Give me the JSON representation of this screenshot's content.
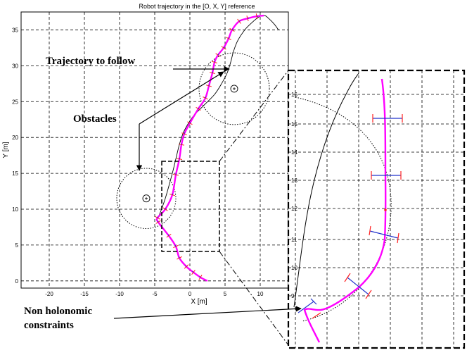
{
  "chart_data": {
    "type": "line",
    "title": "Robot trajectory in the [O, X, Y] reference",
    "xlabel": "X [m]",
    "ylabel": "Y [m]",
    "xlim": [
      -24,
      14
    ],
    "ylim": [
      -1,
      37.5
    ],
    "xticks": [
      -20,
      -15,
      -10,
      -5,
      0,
      5,
      10
    ],
    "yticks": [
      0,
      5,
      10,
      15,
      20,
      25,
      30,
      35
    ],
    "grid": true,
    "series": [
      {
        "role": "reference",
        "color": "#000000",
        "x": [
          -4.5,
          -3.5,
          -2.5,
          -2.0,
          -1.5,
          -1.0,
          -0.5,
          0.5,
          2.0,
          3.5,
          4.5,
          5.3,
          5.8,
          6.2,
          6.8,
          7.8,
          8.8,
          9.8,
          10.6,
          11.2,
          12.0,
          12.6
        ],
        "y": [
          8.8,
          11.5,
          15.0,
          17.0,
          19.0,
          20.5,
          21.5,
          23.0,
          24.5,
          26.0,
          27.5,
          29.0,
          30.5,
          32.0,
          33.5,
          35.0,
          36.0,
          36.8,
          37.0,
          36.6,
          35.8,
          35.0
        ]
      },
      {
        "role": "robot",
        "color": "#ff00ff",
        "x": [
          2.5,
          1.5,
          0.5,
          -0.5,
          -1.5,
          -2.0,
          -3.0,
          -4.5,
          -4.6,
          -3.5,
          -2.5,
          -2.0,
          -1.5,
          -1.2,
          -0.8,
          0.0,
          1.2,
          2.2,
          2.7,
          3.2,
          3.5,
          4.0,
          4.8,
          5.5,
          6.0,
          7.0,
          8.2,
          9.5,
          10.5
        ],
        "y": [
          0.0,
          0.5,
          1.2,
          2.0,
          3.2,
          4.8,
          6.3,
          8.2,
          8.8,
          10.0,
          12.0,
          14.8,
          17.0,
          19.0,
          20.5,
          22.0,
          24.0,
          25.5,
          27.2,
          29.0,
          30.5,
          31.5,
          32.5,
          33.8,
          35.0,
          36.2,
          36.6,
          36.9,
          37.0
        ]
      }
    ],
    "obstacles": [
      {
        "cx": -6.2,
        "cy": 11.5,
        "r": 4.2
      },
      {
        "cx": 6.3,
        "cy": 26.8,
        "r": 5.0
      }
    ],
    "inset": {
      "ytick_labels": [
        "16",
        "15",
        "14",
        "13",
        "12",
        "11",
        "10",
        "9"
      ]
    },
    "annotations": {
      "trajectory": "Trajectory to follow",
      "obstacles": "Obstacles",
      "nonholonomic_line1": "Non holonomic",
      "nonholonomic_line2": "constraints"
    }
  }
}
